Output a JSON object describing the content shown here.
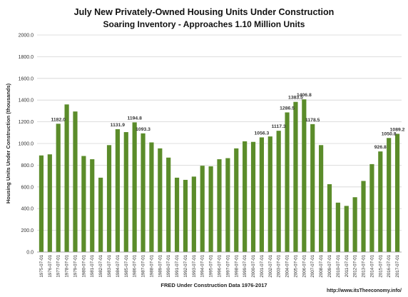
{
  "chart_data": {
    "type": "bar",
    "title": "July New Privately-Owned Housing Units Under Construction",
    "subtitle": "Soaring Inventory - Approaches 1.10 Million Units",
    "xlabel": "FRED Under Construction Data 1976-2017",
    "ylabel": "Housing Units Under Construction (thousands)",
    "ylim": [
      0,
      2000
    ],
    "y_ticks": [
      "0.0",
      "200.0",
      "400.0",
      "600.0",
      "800.0",
      "1000.0",
      "1200.0",
      "1400.0",
      "1600.0",
      "1800.0",
      "2000.0"
    ],
    "grid": true,
    "bar_color": "#5b8c2a",
    "categories": [
      "1975-07-01",
      "1976-07-01",
      "1977-07-01",
      "1978-07-01",
      "1979-07-01",
      "1980-07-01",
      "1981-07-01",
      "1982-07-01",
      "1983-07-01",
      "1984-07-01",
      "1985-07-01",
      "1986-07-01",
      "1987-07-01",
      "1988-07-01",
      "1989-07-01",
      "1990-07-01",
      "1991-07-01",
      "1992-07-01",
      "1993-07-01",
      "1994-07-01",
      "1995-07-01",
      "1996-07-01",
      "1997-07-01",
      "1998-07-01",
      "1999-07-01",
      "2000-07-01",
      "2001-07-01",
      "2002-07-01",
      "2003-07-01",
      "2004-07-01",
      "2005-07-01",
      "2006-07-01",
      "2007-07-01",
      "2008-07-01",
      "2009-07-01",
      "2010-07-01",
      "2011-07-01",
      "2012-07-01",
      "2013-07-01",
      "2014-07-01",
      "2015-07-01",
      "2016-07-01",
      "2017-07-01"
    ],
    "values": [
      890,
      900,
      1182.0,
      1360,
      1295,
      885,
      855,
      685,
      985,
      1131.9,
      1105,
      1194.8,
      1093.3,
      1010,
      955,
      870,
      685,
      665,
      695,
      795,
      790,
      855,
      865,
      955,
      1020,
      1015,
      1056.3,
      1065,
      1117.3,
      1286.5,
      1383.5,
      1406.8,
      1178.5,
      985,
      625,
      455,
      425,
      505,
      655,
      810,
      926.8,
      1050.8,
      1089.2
    ],
    "data_labels": [
      {
        "index": 2,
        "text": "1182.0"
      },
      {
        "index": 9,
        "text": "1131.9"
      },
      {
        "index": 11,
        "text": "1194.8"
      },
      {
        "index": 12,
        "text": "1093.3"
      },
      {
        "index": 26,
        "text": "1056.3"
      },
      {
        "index": 28,
        "text": "1117.3"
      },
      {
        "index": 29,
        "text": "1286.5"
      },
      {
        "index": 30,
        "text": "1383.5"
      },
      {
        "index": 31,
        "text": "1406.8"
      },
      {
        "index": 32,
        "text": "1178.5"
      },
      {
        "index": 40,
        "text": "926.8"
      },
      {
        "index": 41,
        "text": "1050.8"
      },
      {
        "index": 42,
        "text": "1089.2"
      }
    ]
  },
  "footer": {
    "url": "http://www.itsTheeconomy.info/"
  }
}
